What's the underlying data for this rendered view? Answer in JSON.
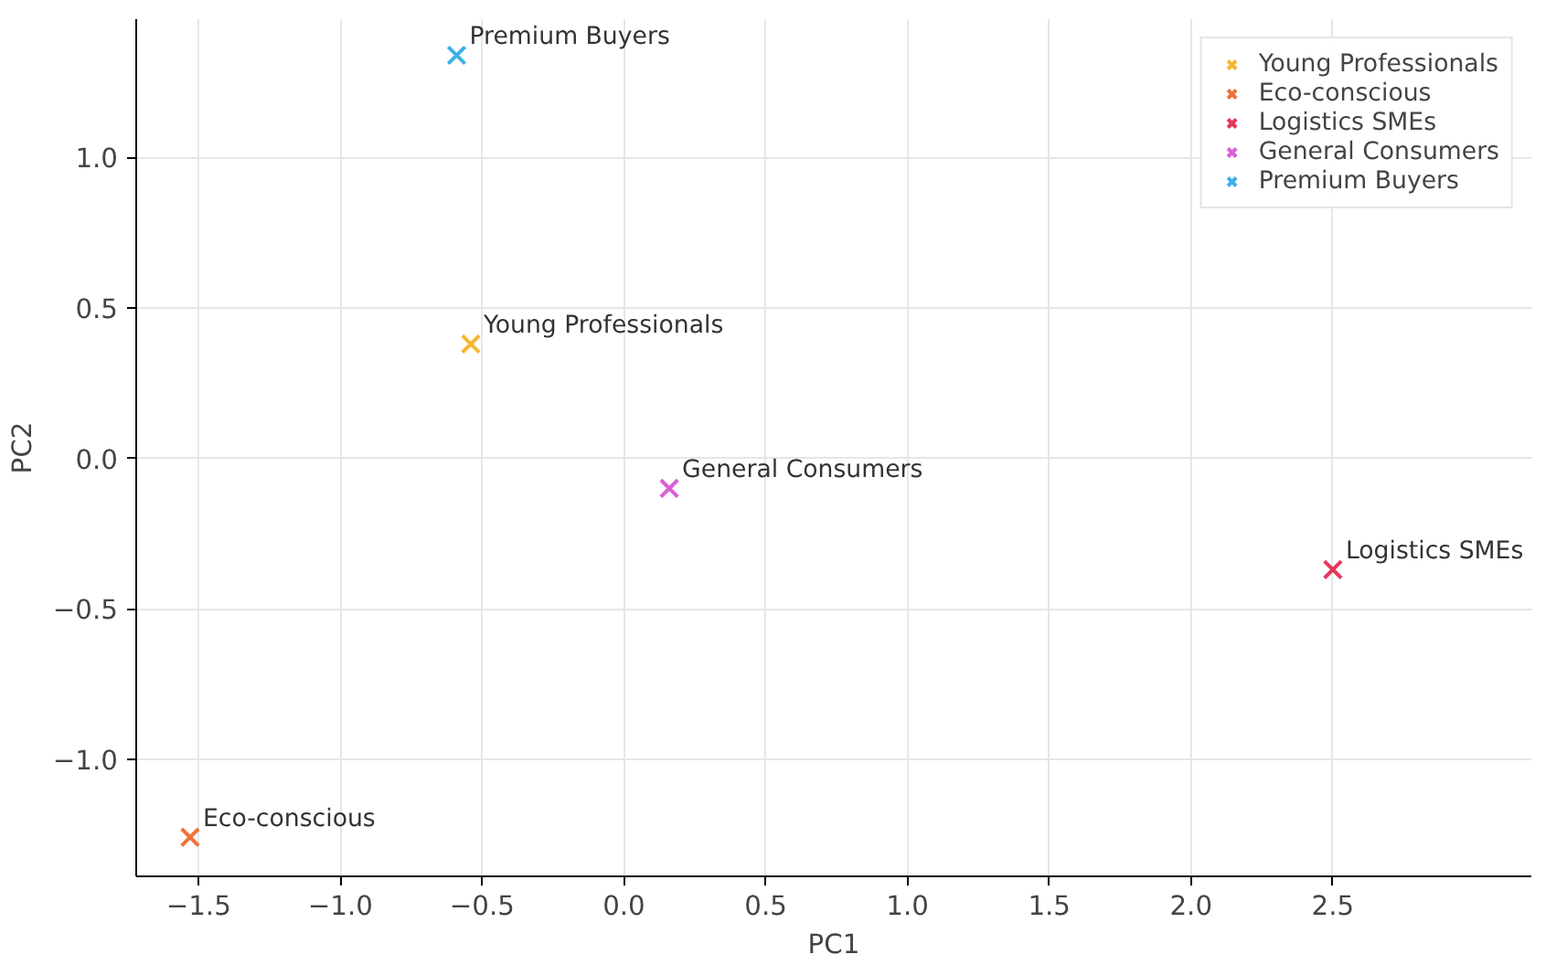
{
  "chart_data": {
    "type": "scatter",
    "xlabel": "PC1",
    "ylabel": "PC2",
    "xlim": [
      -1.72,
      3.2
    ],
    "ylim": [
      -1.39,
      1.46
    ],
    "xticks": [
      {
        "value": -1.5,
        "label": "−1.5"
      },
      {
        "value": -1.0,
        "label": "−1.0"
      },
      {
        "value": -0.5,
        "label": "−0.5"
      },
      {
        "value": 0.0,
        "label": "0.0"
      },
      0.5,
      {
        "value": 1.0,
        "label": "1.0"
      },
      1.5,
      {
        "value": 2.0,
        "label": "2.0"
      },
      2.5
    ],
    "yticks": [
      {
        "value": -1.0,
        "label": "−1.0"
      },
      {
        "value": -0.5,
        "label": "−0.5"
      },
      {
        "value": 0.0,
        "label": "0.0"
      },
      0.5,
      {
        "value": 1.0,
        "label": "1.0"
      }
    ],
    "marker": "cross",
    "grid": true,
    "legend": "top right",
    "series": [
      {
        "name": "Young Professionals",
        "color": "#f5b731",
        "x": [
          -0.54
        ],
        "values": [
          0.38
        ]
      },
      {
        "name": "Eco-conscious",
        "color": "#f0703a",
        "x": [
          -1.53
        ],
        "values": [
          -1.26
        ]
      },
      {
        "name": "Logistics SMEs",
        "color": "#e8365a",
        "x": [
          2.5
        ],
        "values": [
          -0.37
        ]
      },
      {
        "name": "General Consumers",
        "color": "#d95fd6",
        "x": [
          0.16
        ],
        "values": [
          -0.1
        ]
      },
      {
        "name": "Premium Buyers",
        "color": "#3bb0e8",
        "x": [
          -0.59
        ],
        "values": [
          1.34
        ]
      }
    ]
  }
}
